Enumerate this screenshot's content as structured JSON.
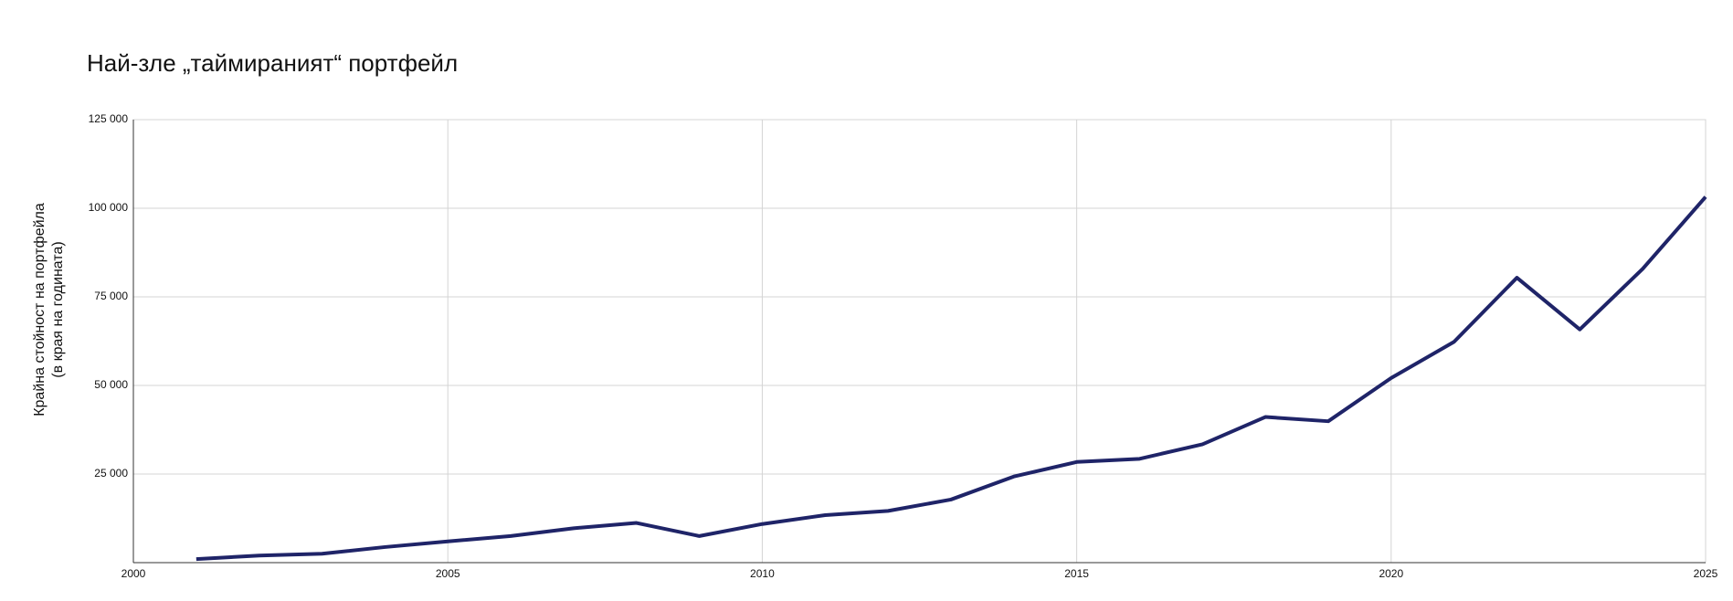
{
  "chart_data": {
    "type": "line",
    "title": "Най-зле „таймираният“ портфейл",
    "ylabel": [
      "Крайна стойност на портфейла",
      "(в края на годината)"
    ],
    "x": [
      2001,
      2002,
      2003,
      2004,
      2005,
      2006,
      2007,
      2008,
      2009,
      2010,
      2011,
      2012,
      2013,
      2014,
      2015,
      2016,
      2017,
      2018,
      2019,
      2020,
      2021,
      2022,
      2023,
      2024,
      2025
    ],
    "series": [
      {
        "color": "#1f2468",
        "values": [
          1000,
          2000,
          2500,
          4400,
          6000,
          7500,
          9700,
          11200,
          7500,
          10900,
          13400,
          14600,
          17800,
          24300,
          28400,
          29300,
          33400,
          41100,
          39900,
          52100,
          62300,
          80400,
          65800,
          82900,
          103200
        ]
      }
    ],
    "xlim": [
      2000,
      2025
    ],
    "xticks": [
      2000,
      2005,
      2010,
      2015,
      2020,
      2025
    ],
    "ylim": [
      0,
      125000
    ],
    "yticks": [
      {
        "value": 25000,
        "label": "25 000"
      },
      {
        "value": 50000,
        "label": "50 000"
      },
      {
        "value": 75000,
        "label": "75 000"
      },
      {
        "value": 100000,
        "label": "100 000"
      },
      {
        "value": 125000,
        "label": "125 000"
      }
    ],
    "grid": true
  }
}
